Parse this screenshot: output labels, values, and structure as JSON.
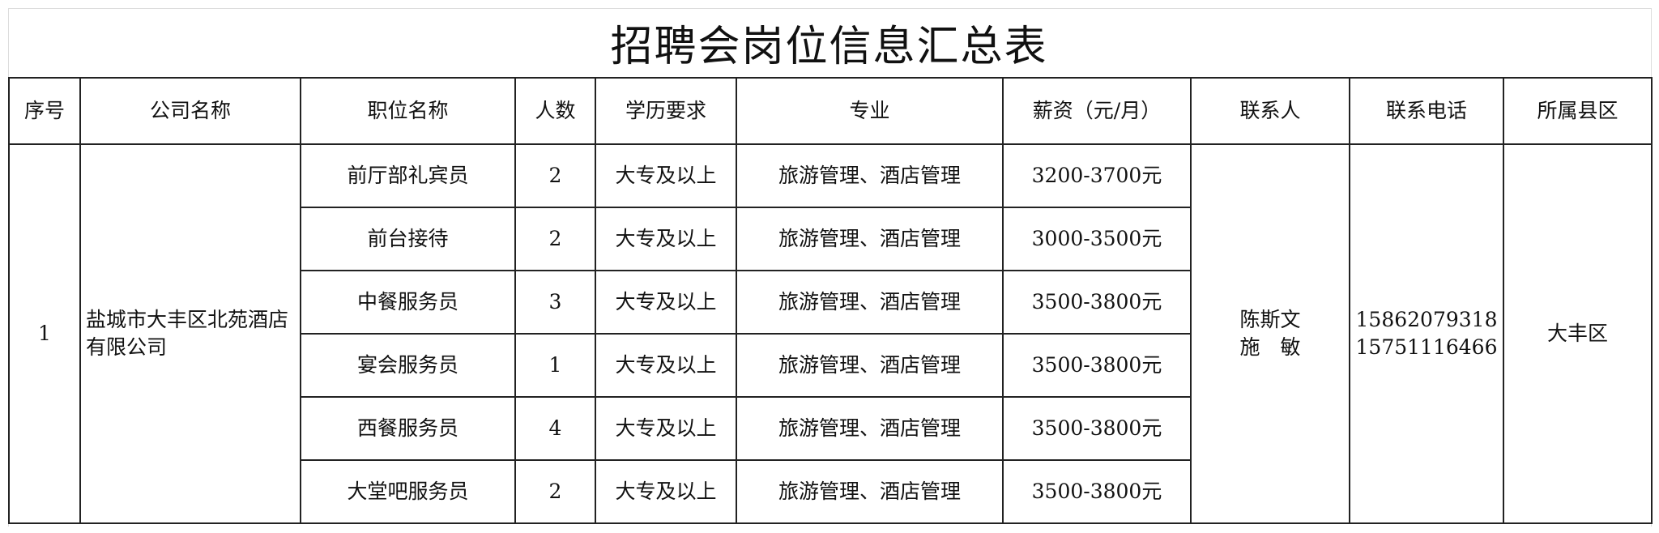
{
  "title": "招聘会岗位信息汇总表",
  "headers": [
    "序号",
    "公司名称",
    "职位名称",
    "人数",
    "学历要求",
    "专业",
    "薪资（元/月）",
    "联系人",
    "联系电话",
    "所属县区"
  ],
  "entry": {
    "index": "1",
    "company": "盐城市大丰区北苑酒店有限公司",
    "contacts": [
      "陈斯文",
      "施　敏"
    ],
    "phones": [
      "15862079318",
      "15751116466"
    ],
    "district": "大丰区",
    "positions": [
      {
        "title": "前厅部礼宾员",
        "count": "2",
        "education": "大专及以上",
        "major": "旅游管理、酒店管理",
        "salary": "3200-3700元"
      },
      {
        "title": "前台接待",
        "count": "2",
        "education": "大专及以上",
        "major": "旅游管理、酒店管理",
        "salary": "3000-3500元"
      },
      {
        "title": "中餐服务员",
        "count": "3",
        "education": "大专及以上",
        "major": "旅游管理、酒店管理",
        "salary": "3500-3800元"
      },
      {
        "title": "宴会服务员",
        "count": "1",
        "education": "大专及以上",
        "major": "旅游管理、酒店管理",
        "salary": "3500-3800元"
      },
      {
        "title": "西餐服务员",
        "count": "4",
        "education": "大专及以上",
        "major": "旅游管理、酒店管理",
        "salary": "3500-3800元"
      },
      {
        "title": "大堂吧服务员",
        "count": "2",
        "education": "大专及以上",
        "major": "旅游管理、酒店管理",
        "salary": "3500-3800元"
      }
    ]
  }
}
